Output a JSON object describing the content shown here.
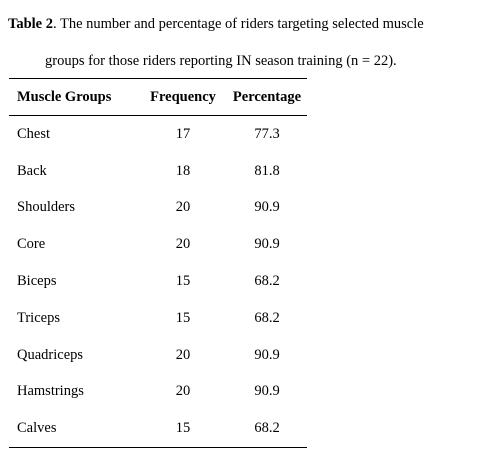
{
  "caption": {
    "label": "Table 2",
    "text_line1": ". The number and percentage of riders targeting selected muscle",
    "text_line2": "groups for those riders reporting IN season training (n = 22)."
  },
  "table": {
    "headers": [
      "Muscle Groups",
      "Frequency",
      "Percentage"
    ],
    "rows": [
      {
        "group": "Chest",
        "frequency": "17",
        "percentage": "77.3"
      },
      {
        "group": "Back",
        "frequency": "18",
        "percentage": "81.8"
      },
      {
        "group": "Shoulders",
        "frequency": "20",
        "percentage": "90.9"
      },
      {
        "group": "Core",
        "frequency": "20",
        "percentage": "90.9"
      },
      {
        "group": "Biceps",
        "frequency": "15",
        "percentage": "68.2"
      },
      {
        "group": "Triceps",
        "frequency": "15",
        "percentage": "68.2"
      },
      {
        "group": "Quadriceps",
        "frequency": "20",
        "percentage": "90.9"
      },
      {
        "group": "Hamstrings",
        "frequency": "20",
        "percentage": "90.9"
      },
      {
        "group": "Calves",
        "frequency": "15",
        "percentage": "68.2"
      }
    ]
  }
}
